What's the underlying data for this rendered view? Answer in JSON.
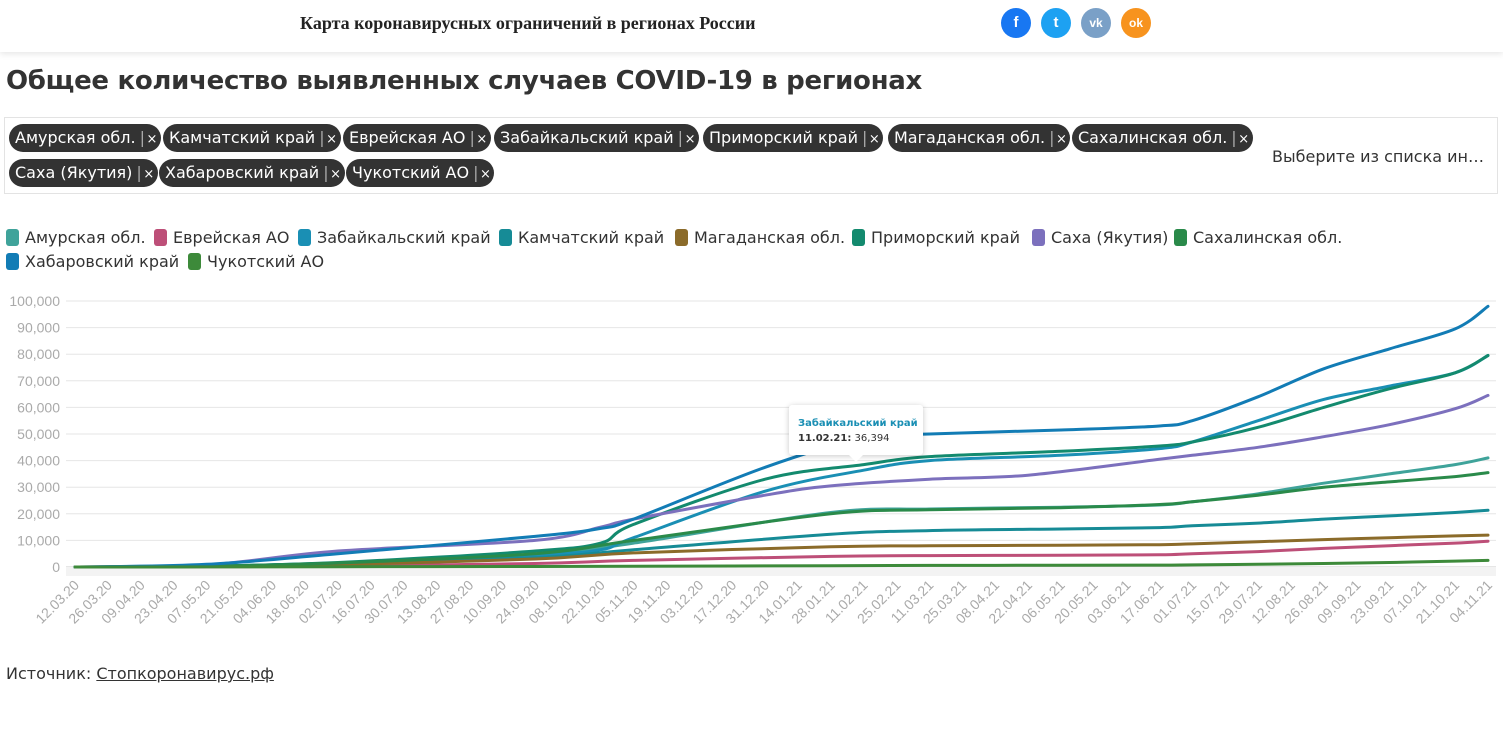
{
  "header": {
    "site_title": "Карта коронавирусных ограничений в регионах России",
    "social": [
      {
        "label": "f",
        "icon": "facebook-icon",
        "color": "#1877f2"
      },
      {
        "label": "t",
        "icon": "twitter-icon",
        "color": "#1da1f2"
      },
      {
        "label": "vk",
        "icon": "vk-icon",
        "color": "#7aa0c7"
      },
      {
        "label": "ok",
        "icon": "odnoklassniki-icon",
        "color": "#f7931e"
      }
    ]
  },
  "page_title": "Общее количество выявленных случаев COVID-19 в регионах",
  "selector": {
    "chips": [
      "Амурская обл.",
      "Камчатский край",
      "Еврейская АО",
      "Забайкальский край",
      "Приморский край",
      "Магаданская обл.",
      "Сахалинская обл.",
      "Саха (Якутия)",
      "Хабаровский край",
      "Чукотский АО"
    ],
    "separator": "|",
    "remove": "×",
    "placeholder": "Выберите из списка ин…"
  },
  "tooltip": {
    "series": "Забайкальский край",
    "date": "11.02.21:",
    "value": "36,394"
  },
  "source": {
    "label": "Источник: ",
    "link": "Стопкоронавирус.рф"
  },
  "chart_data": {
    "type": "line",
    "x_ticks": [
      "12.03.20",
      "26.03.20",
      "09.04.20",
      "23.04.20",
      "07.05.20",
      "21.05.20",
      "04.06.20",
      "18.06.20",
      "02.07.20",
      "16.07.20",
      "30.07.20",
      "13.08.20",
      "27.08.20",
      "10.09.20",
      "24.09.20",
      "08.10.20",
      "22.10.20",
      "05.11.20",
      "19.11.20",
      "03.12.20",
      "17.12.20",
      "31.12.20",
      "14.01.21",
      "28.01.21",
      "11.02.21",
      "25.02.21",
      "11.03.21",
      "25.03.21",
      "08.04.21",
      "22.04.21",
      "06.05.21",
      "20.05.21",
      "03.06.21",
      "17.06.21",
      "01.07.21",
      "15.07.21",
      "29.07.21",
      "12.08.21",
      "26.08.21",
      "09.09.21",
      "23.09.21",
      "07.10.21",
      "21.10.21",
      "04.11.21"
    ],
    "y_ticks": [
      "0",
      "10,000",
      "20,000",
      "30,000",
      "40,000",
      "50,000",
      "60,000",
      "70,000",
      "80,000",
      "90,000",
      "100,000"
    ],
    "ylim": [
      0,
      100000
    ],
    "grid": true,
    "legend_position": "top-left",
    "series": [
      {
        "name": "Амурская обл.",
        "color": "#3fa39a",
        "x": [
          "12.03.20",
          "07.05.20",
          "02.07.20",
          "24.09.20",
          "05.11.20",
          "28.01.21",
          "11.03.21",
          "06.05.21",
          "17.06.21",
          "01.07.21",
          "29.07.21",
          "26.08.21",
          "23.09.21",
          "21.10.21",
          "04.11.21"
        ],
        "values": [
          0,
          200,
          1200,
          4500,
          9000,
          20500,
          21800,
          22500,
          23300,
          24500,
          27500,
          31500,
          35000,
          38500,
          41000
        ]
      },
      {
        "name": "Еврейская АО",
        "color": "#bd4f78",
        "x": [
          "12.03.20",
          "07.05.20",
          "02.07.20",
          "24.09.20",
          "05.11.20",
          "28.01.21",
          "11.03.21",
          "06.05.21",
          "17.06.21",
          "01.07.21",
          "29.07.21",
          "26.08.21",
          "23.09.21",
          "21.10.21",
          "04.11.21"
        ],
        "values": [
          0,
          100,
          400,
          1300,
          2500,
          4000,
          4300,
          4400,
          4600,
          5000,
          5800,
          7000,
          8000,
          9000,
          9700
        ]
      },
      {
        "name": "Забайкальский край",
        "color": "#1a8fb4",
        "x": [
          "12.03.20",
          "07.05.20",
          "02.07.20",
          "24.09.20",
          "22.10.20",
          "05.11.20",
          "31.12.20",
          "11.02.21",
          "11.03.21",
          "06.05.21",
          "17.06.21",
          "01.07.21",
          "29.07.21",
          "26.08.21",
          "23.09.21",
          "21.10.21",
          "04.11.21"
        ],
        "values": [
          0,
          300,
          1500,
          4500,
          6500,
          11000,
          28500,
          36394,
          40000,
          42000,
          44500,
          47000,
          55000,
          63000,
          68000,
          73000,
          79500
        ]
      },
      {
        "name": "Камчатский край",
        "color": "#168b96",
        "x": [
          "12.03.20",
          "07.05.20",
          "02.07.20",
          "24.09.20",
          "05.11.20",
          "28.01.21",
          "11.03.21",
          "06.05.21",
          "17.06.21",
          "01.07.21",
          "29.07.21",
          "26.08.21",
          "23.09.21",
          "21.10.21",
          "04.11.21"
        ],
        "values": [
          0,
          300,
          1500,
          3500,
          6500,
          12300,
          13700,
          14300,
          14800,
          15500,
          16500,
          18000,
          19200,
          20500,
          21300
        ]
      },
      {
        "name": "Магаданская обл.",
        "color": "#8b6b2a",
        "x": [
          "12.03.20",
          "07.05.20",
          "02.07.20",
          "24.09.20",
          "05.11.20",
          "28.01.21",
          "11.03.21",
          "06.05.21",
          "17.06.21",
          "01.07.21",
          "29.07.21",
          "26.08.21",
          "23.09.21",
          "21.10.21",
          "04.11.21"
        ],
        "values": [
          0,
          200,
          900,
          3000,
          5300,
          7600,
          8000,
          8200,
          8400,
          8700,
          9500,
          10300,
          11000,
          11700,
          12000
        ]
      },
      {
        "name": "Приморский край",
        "color": "#138a6e",
        "x": [
          "12.03.20",
          "07.05.20",
          "02.07.20",
          "24.09.20",
          "22.10.20",
          "05.11.20",
          "31.12.20",
          "11.02.21",
          "11.03.21",
          "06.05.21",
          "17.06.21",
          "01.07.21",
          "29.07.21",
          "26.08.21",
          "23.09.21",
          "21.10.21",
          "04.11.21"
        ],
        "values": [
          0,
          300,
          1700,
          6000,
          9000,
          16000,
          33000,
          38500,
          41500,
          43500,
          45500,
          47000,
          52500,
          60000,
          67000,
          73000,
          79500
        ]
      },
      {
        "name": "Саха (Якутия)",
        "color": "#7c70bd",
        "x": [
          "12.03.20",
          "07.05.20",
          "02.07.20",
          "24.09.20",
          "22.10.20",
          "05.11.20",
          "31.12.20",
          "28.01.21",
          "11.03.21",
          "22.04.21",
          "17.06.21",
          "01.07.21",
          "29.07.21",
          "26.08.21",
          "23.09.21",
          "21.10.21",
          "04.11.21"
        ],
        "values": [
          0,
          800,
          6000,
          10000,
          15000,
          18000,
          27000,
          30500,
          33000,
          34500,
          40500,
          42000,
          45000,
          49000,
          53500,
          59500,
          64500
        ]
      },
      {
        "name": "Сахалинская обл.",
        "color": "#2a8a4a",
        "x": [
          "12.03.20",
          "07.05.20",
          "02.07.20",
          "24.09.20",
          "05.11.20",
          "28.01.21",
          "11.03.21",
          "06.05.21",
          "17.06.21",
          "01.07.21",
          "29.07.21",
          "26.08.21",
          "23.09.21",
          "21.10.21",
          "04.11.21"
        ],
        "values": [
          0,
          300,
          1500,
          5000,
          10000,
          20000,
          21500,
          22300,
          23500,
          24500,
          27000,
          30000,
          32000,
          34000,
          35500
        ]
      },
      {
        "name": "Хабаровский край",
        "color": "#127cb5",
        "x": [
          "12.03.20",
          "07.05.20",
          "02.07.20",
          "24.09.20",
          "22.10.20",
          "05.11.20",
          "31.12.20",
          "11.02.21",
          "11.03.21",
          "06.05.21",
          "17.06.21",
          "01.07.21",
          "29.07.21",
          "26.08.21",
          "23.09.21",
          "21.10.21",
          "04.11.21"
        ],
        "values": [
          0,
          1000,
          5000,
          11500,
          14500,
          18000,
          37500,
          48500,
          50000,
          51500,
          53000,
          55000,
          64000,
          74500,
          82000,
          89500,
          98000
        ]
      },
      {
        "name": "Чукотский АО",
        "color": "#3d8a3a",
        "x": [
          "12.03.20",
          "07.05.20",
          "02.07.20",
          "24.09.20",
          "05.11.20",
          "28.01.21",
          "11.03.21",
          "06.05.21",
          "17.06.21",
          "01.07.21",
          "29.07.21",
          "26.08.21",
          "23.09.21",
          "21.10.21",
          "04.11.21"
        ],
        "values": [
          0,
          20,
          100,
          200,
          300,
          500,
          600,
          650,
          700,
          800,
          1000,
          1300,
          1700,
          2200,
          2500
        ]
      }
    ]
  }
}
